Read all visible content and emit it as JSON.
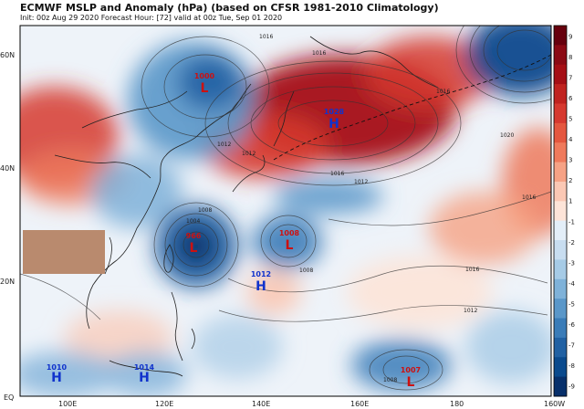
{
  "header": {
    "title": "ECMWF MSLP and Anomaly (hPa) (based on CFSR 1981-2010 Climatology)",
    "subtitle": "Init: 00z Aug 29 2020   Forecast Hour: [72]   valid at 00z Tue, Sep 01 2020"
  },
  "axes": {
    "lat_labels": [
      "60N",
      "40N",
      "20N",
      "EQ"
    ],
    "lon_labels": [
      "100E",
      "120E",
      "140E",
      "160E",
      "180",
      "160W"
    ]
  },
  "colorbar": {
    "ticks": [
      "9",
      "8",
      "7",
      "6",
      "5",
      "4",
      "3",
      "2",
      "1",
      "-1",
      "-2",
      "-3",
      "-4",
      "-5",
      "-6",
      "-7",
      "-8",
      "-9"
    ],
    "colors": [
      "#67000d",
      "#8b0a14",
      "#a50f15",
      "#c0231f",
      "#d6392f",
      "#e4573f",
      "#ef7a5c",
      "#f6a285",
      "#fbc8b4",
      "#fde4d8",
      "#e3eef8",
      "#c8ddf0",
      "#a6cbe6",
      "#7fb2d9",
      "#5a97c9",
      "#3a7cb8",
      "#2161a3",
      "#0b4a8d",
      "#08306b"
    ]
  },
  "pressure_systems": [
    {
      "type": "L",
      "value": "1000",
      "color": "#cc1111"
    },
    {
      "type": "H",
      "value": "1028",
      "color": "#1133cc"
    },
    {
      "type": "L",
      "value": "966",
      "color": "#cc1111"
    },
    {
      "type": "L",
      "value": "1008",
      "color": "#cc1111"
    },
    {
      "type": "H",
      "value": "1012",
      "color": "#1133cc"
    },
    {
      "type": "H",
      "value": "1010",
      "color": "#1133cc"
    },
    {
      "type": "H",
      "value": "1014",
      "color": "#1133cc"
    },
    {
      "type": "L",
      "value": "1007",
      "color": "#cc1111"
    }
  ],
  "isobar_labels": [
    "1016",
    "1016",
    "1012",
    "1012",
    "1016",
    "1020",
    "1016",
    "1012",
    "1008",
    "1004",
    "1016",
    "1012",
    "1008",
    "1016",
    "1008"
  ],
  "redaction_color": "#b98a6e"
}
